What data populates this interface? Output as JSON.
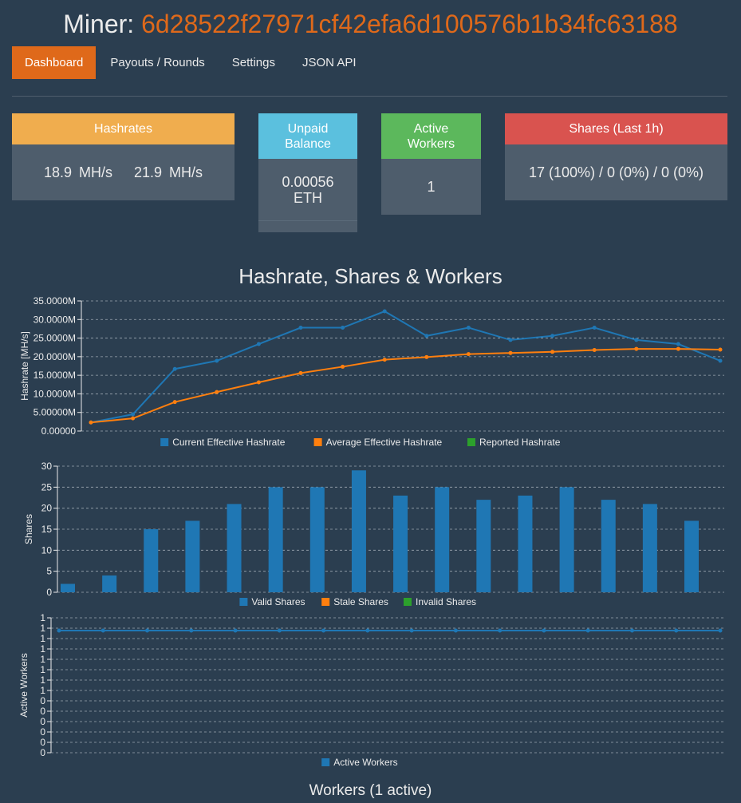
{
  "header": {
    "prefix": "Miner:",
    "address": "6d28522f27971cf42efa6d100576b1b34fc63188"
  },
  "nav": [
    {
      "label": "Dashboard",
      "active": true
    },
    {
      "label": "Payouts / Rounds",
      "active": false
    },
    {
      "label": "Settings",
      "active": false
    },
    {
      "label": "JSON API",
      "active": false
    }
  ],
  "cards": {
    "hashrates": {
      "title": "Hashrates",
      "value": "18.9 MH/s   21.9 MH/s"
    },
    "unpaid": {
      "title": "Unpaid Balance",
      "value": "0.00056 ETH"
    },
    "workers": {
      "title": "Active Workers",
      "value": "1"
    },
    "shares": {
      "title": "Shares (Last 1h)",
      "value": "17 (100%) / 0 (0%) / 0 (0%)"
    }
  },
  "colors": {
    "accent": "#df691a",
    "blue": "#1f77b4",
    "orange": "#ff7f0e",
    "green": "#2ca02c",
    "background": "#2b3e50"
  },
  "charts_title": "Hashrate, Shares & Workers",
  "workers_section_title": "Workers (1 active)",
  "chart_data": [
    {
      "type": "line",
      "ylabel": "Hashrate [MH/s]",
      "ylim": [
        0,
        35000000
      ],
      "yticks": [
        "0.00000",
        "5.00000M",
        "10.0000M",
        "15.0000M",
        "20.0000M",
        "25.0000M",
        "30.0000M",
        "35.0000M"
      ],
      "series": [
        {
          "name": "Current Effective Hashrate",
          "color": "#1f77b4",
          "values": [
            2.3,
            4.5,
            16.7,
            18.9,
            23.4,
            27.8,
            27.8,
            32.2,
            25.6,
            27.8,
            24.5,
            25.6,
            27.8,
            24.5,
            23.4,
            18.9
          ]
        },
        {
          "name": "Average Effective Hashrate",
          "color": "#ff7f0e",
          "values": [
            2.3,
            3.4,
            7.8,
            10.5,
            13.1,
            15.6,
            17.3,
            19.2,
            19.9,
            20.7,
            21.0,
            21.3,
            21.8,
            22.1,
            22.1,
            21.9
          ]
        },
        {
          "name": "Reported Hashrate",
          "color": "#2ca02c",
          "values": []
        }
      ]
    },
    {
      "type": "bar",
      "ylabel": "Shares",
      "ylim": [
        0,
        30
      ],
      "yticks": [
        "0",
        "5",
        "10",
        "15",
        "20",
        "25",
        "30"
      ],
      "series": [
        {
          "name": "Valid Shares",
          "color": "#1f77b4",
          "values": [
            2,
            4,
            15,
            17,
            21,
            25,
            25,
            29,
            23,
            25,
            22,
            23,
            25,
            22,
            21,
            17
          ]
        },
        {
          "name": "Stale Shares",
          "color": "#ff7f0e",
          "values": []
        },
        {
          "name": "Invalid Shares",
          "color": "#2ca02c",
          "values": []
        }
      ]
    },
    {
      "type": "line",
      "ylabel": "Active Workers",
      "yticks": [
        "0",
        "0",
        "0",
        "0",
        "0",
        "0",
        "1",
        "1",
        "1",
        "1",
        "1",
        "1",
        "1",
        "1"
      ],
      "series": [
        {
          "name": "Active Workers",
          "color": "#1f77b4",
          "values": [
            1,
            1,
            1,
            1,
            1,
            1,
            1,
            1,
            1,
            1,
            1,
            1,
            1,
            1,
            1,
            1
          ]
        }
      ]
    }
  ]
}
